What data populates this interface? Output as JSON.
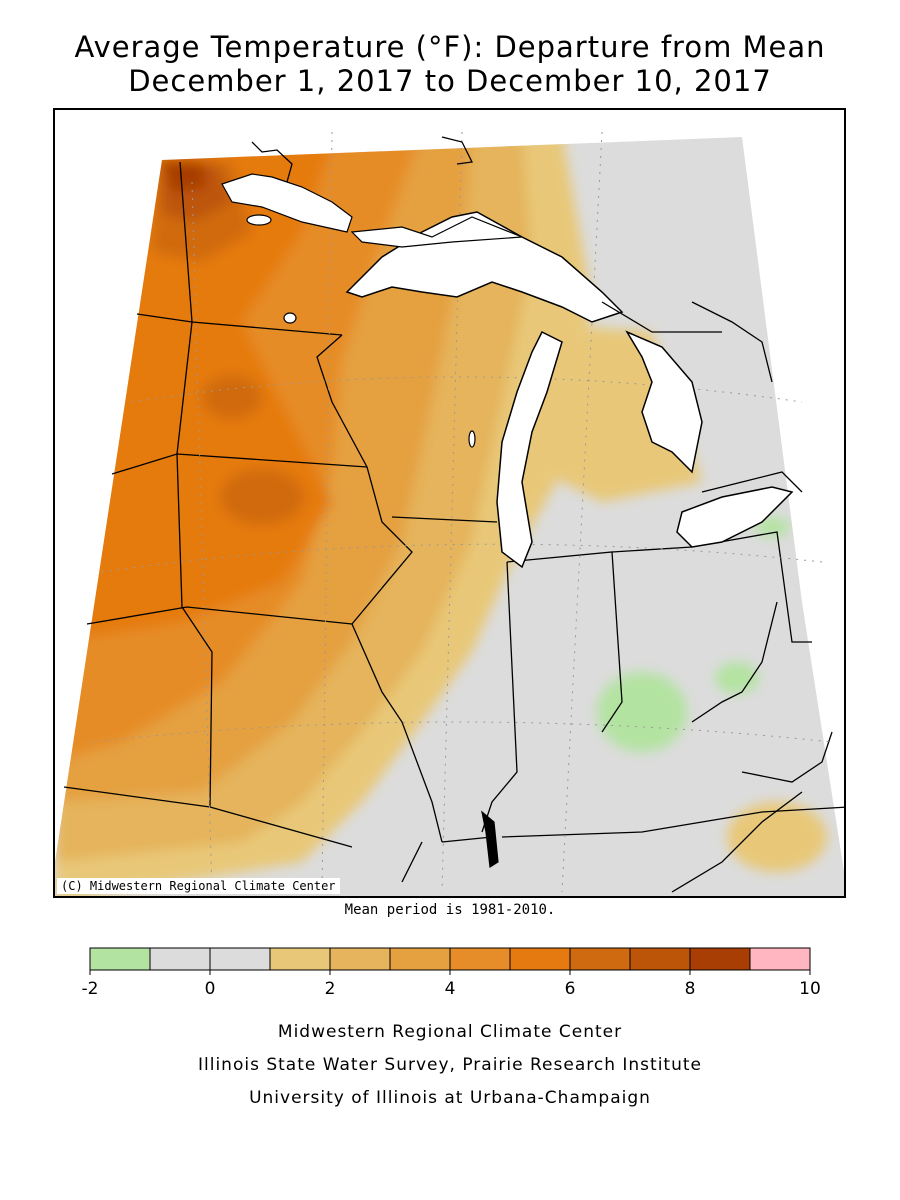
{
  "title": {
    "line1": "Average Temperature (°F): Departure from Mean",
    "line2": "December 1, 2017 to December 10, 2017"
  },
  "map": {
    "copyright": "(C) Midwestern Regional Climate Center",
    "lake_color": "#ffffff",
    "region": "Midwest United States"
  },
  "mean_period": "Mean period is 1981-2010.",
  "legend": {
    "bins": [
      {
        "from": -2,
        "to": -1,
        "color": "#b3e3a1"
      },
      {
        "from": -1,
        "to": 0,
        "color": "#dcdcdc"
      },
      {
        "from": 0,
        "to": 1,
        "color": "#dcdcdc"
      },
      {
        "from": 1,
        "to": 2,
        "color": "#e8c878"
      },
      {
        "from": 2,
        "to": 3,
        "color": "#e5b45c"
      },
      {
        "from": 3,
        "to": 4,
        "color": "#e5a040"
      },
      {
        "from": 4,
        "to": 5,
        "color": "#e68c28"
      },
      {
        "from": 5,
        "to": 6,
        "color": "#e57a10"
      },
      {
        "from": 6,
        "to": 7,
        "color": "#d06a10"
      },
      {
        "from": 7,
        "to": 8,
        "color": "#bd5508"
      },
      {
        "from": 8,
        "to": 9,
        "color": "#a83e04"
      },
      {
        "from": 9,
        "to": 10,
        "color": "#ffb6c1"
      }
    ],
    "tick_labels": [
      "-2",
      "0",
      "2",
      "4",
      "6",
      "8",
      "10"
    ],
    "tick_values": [
      -2,
      0,
      2,
      4,
      6,
      8,
      10
    ]
  },
  "footer": {
    "line1": "Midwestern Regional Climate Center",
    "line2": "Illinois State Water Survey, Prairie Research Institute",
    "line3": "University of Illinois at Urbana-Champaign"
  }
}
